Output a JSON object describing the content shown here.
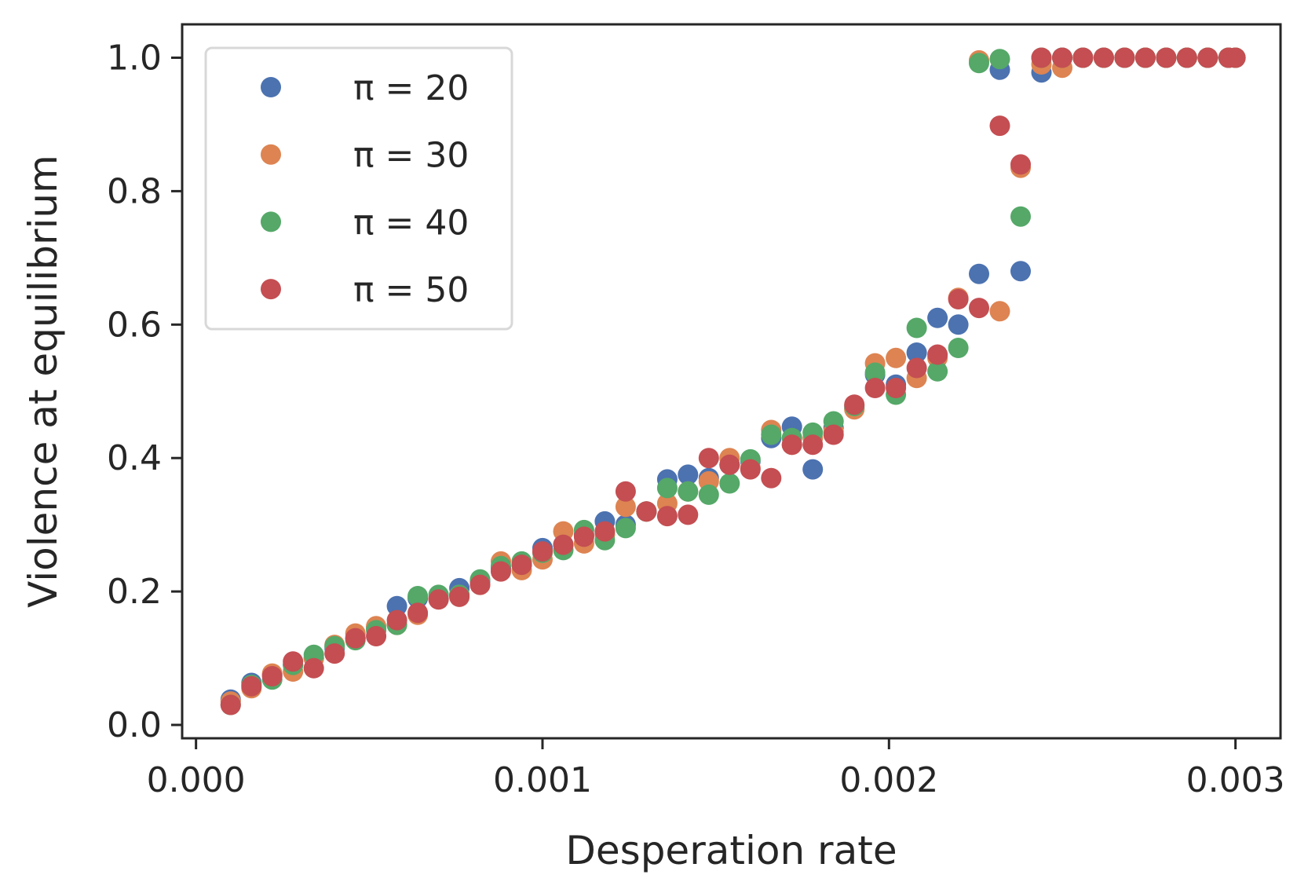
{
  "chart_data": {
    "type": "scatter",
    "xlabel": "Desperation rate",
    "ylabel": "Violence at equilibrium",
    "xlim": [
      -4e-05,
      0.00313
    ],
    "ylim": [
      -0.02,
      1.05
    ],
    "xticks": [
      0.0,
      0.001,
      0.002,
      0.003
    ],
    "xtick_labels": [
      "0.000",
      "0.001",
      "0.002",
      "0.003"
    ],
    "yticks": [
      0.0,
      0.2,
      0.4,
      0.6,
      0.8,
      1.0
    ],
    "ytick_labels": [
      "0.0",
      "0.2",
      "0.4",
      "0.6",
      "0.8",
      "1.0"
    ],
    "grid": false,
    "legend_position": "top-left",
    "x": [
      0.0001,
      0.00016,
      0.00022,
      0.00028,
      0.00034,
      0.0004,
      0.00046,
      0.00052,
      0.00058,
      0.00064,
      0.0007,
      0.00076,
      0.00082,
      0.00088,
      0.00094,
      0.001,
      0.00106,
      0.00112,
      0.00118,
      0.00124,
      0.0013,
      0.00136,
      0.00142,
      0.00148,
      0.00154,
      0.0016,
      0.00166,
      0.00172,
      0.00178,
      0.00184,
      0.0019,
      0.00196,
      0.00202,
      0.00208,
      0.00214,
      0.0022,
      0.00226,
      0.00232,
      0.00238,
      0.00244,
      0.0025,
      0.00256,
      0.00262,
      0.00268,
      0.00274,
      0.0028,
      0.00286,
      0.00292,
      0.00298,
      0.003
    ],
    "series": [
      {
        "name": "π = 20",
        "color": "#4c72b0",
        "values": [
          0.038,
          0.063,
          0.075,
          0.09,
          0.1,
          0.115,
          0.13,
          0.145,
          0.178,
          0.19,
          0.19,
          0.205,
          0.215,
          0.235,
          0.24,
          0.265,
          0.27,
          0.285,
          0.305,
          0.3,
          0.32,
          0.368,
          0.375,
          0.37,
          0.39,
          0.395,
          0.43,
          0.447,
          0.383,
          0.445,
          0.475,
          0.525,
          0.51,
          0.558,
          0.61,
          0.6,
          0.676,
          0.982,
          0.68,
          0.978,
          1.0,
          1.0,
          1.0,
          1.0,
          1.0,
          1.0,
          1.0,
          1.0,
          1.0,
          1.0
        ]
      },
      {
        "name": "π = 30",
        "color": "#dd8452",
        "values": [
          0.035,
          0.055,
          0.077,
          0.08,
          0.1,
          0.12,
          0.137,
          0.148,
          0.15,
          0.165,
          0.19,
          0.195,
          0.21,
          0.245,
          0.232,
          0.248,
          0.29,
          0.272,
          0.285,
          0.327,
          0.32,
          0.332,
          0.35,
          0.365,
          0.4,
          0.385,
          0.442,
          0.42,
          0.43,
          0.44,
          0.473,
          0.542,
          0.55,
          0.52,
          0.55,
          0.64,
          0.996,
          0.62,
          0.835,
          0.99,
          0.985,
          1.0,
          1.0,
          1.0,
          1.0,
          1.0,
          1.0,
          1.0,
          1.0,
          1.0
        ]
      },
      {
        "name": "π = 40",
        "color": "#55a868",
        "values": [
          0.03,
          0.06,
          0.068,
          0.09,
          0.105,
          0.118,
          0.127,
          0.142,
          0.15,
          0.193,
          0.195,
          0.195,
          0.218,
          0.238,
          0.245,
          0.258,
          0.262,
          0.292,
          0.277,
          0.295,
          0.32,
          0.355,
          0.35,
          0.345,
          0.362,
          0.398,
          0.435,
          0.43,
          0.438,
          0.455,
          0.478,
          0.528,
          0.495,
          0.595,
          0.53,
          0.565,
          0.992,
          0.998,
          0.762,
          1.0,
          1.0,
          1.0,
          1.0,
          1.0,
          1.0,
          1.0,
          1.0,
          1.0,
          1.0,
          1.0
        ]
      },
      {
        "name": "π = 50",
        "color": "#c44e52",
        "values": [
          0.03,
          0.058,
          0.073,
          0.095,
          0.085,
          0.107,
          0.13,
          0.133,
          0.157,
          0.168,
          0.188,
          0.192,
          0.21,
          0.23,
          0.24,
          0.26,
          0.27,
          0.282,
          0.29,
          0.35,
          0.32,
          0.313,
          0.315,
          0.4,
          0.39,
          0.383,
          0.37,
          0.42,
          0.42,
          0.435,
          0.48,
          0.505,
          0.505,
          0.535,
          0.555,
          0.638,
          0.625,
          0.898,
          0.84,
          1.0,
          1.0,
          1.0,
          1.0,
          1.0,
          1.0,
          1.0,
          1.0,
          1.0,
          1.0,
          1.0
        ]
      }
    ]
  }
}
